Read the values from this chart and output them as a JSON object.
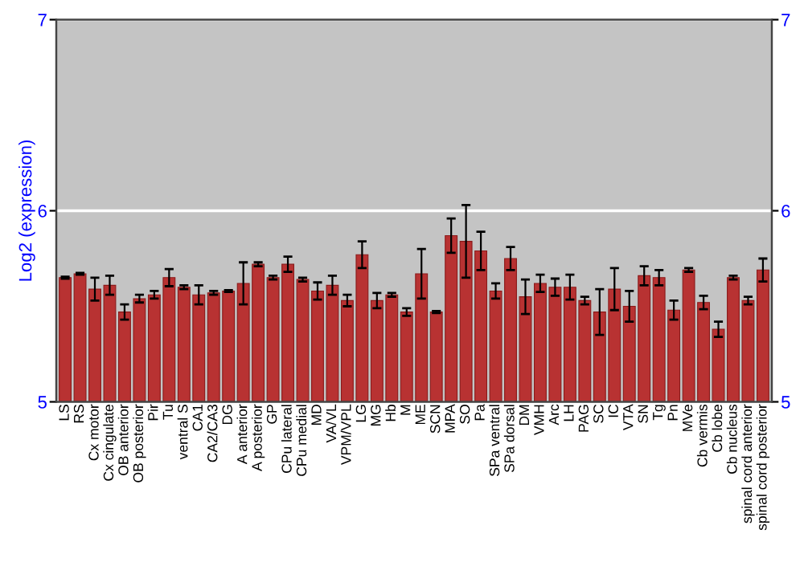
{
  "chart_data": {
    "type": "bar",
    "ylabel": "Log2 (expression)",
    "categories": [
      "LS",
      "RS",
      "Cx motor",
      "Cx cingulate",
      "OB anterior",
      "OB posterior",
      "Pir",
      "Tu",
      "ventral S",
      "CA1",
      "CA2/CA3",
      "DG",
      "A anterior",
      "A posterior",
      "GP",
      "CPu lateral",
      "CPu medial",
      "MD",
      "VA/VL",
      "VPM/VPL",
      "LG",
      "MG",
      "Hb",
      "M",
      "ME",
      "SCN",
      "MPA",
      "SO",
      "Pa",
      "SPa ventral",
      "SPa dorsal",
      "DM",
      "VMH",
      "Arc",
      "LH",
      "PAG",
      "SC",
      "IC",
      "VTA",
      "SN",
      "Tg",
      "Pn",
      "MVe",
      "Cb vermis",
      "Cb lobe",
      "Cb nucleus",
      "spinal cord anterior",
      "spinal cord posterior"
    ],
    "values": [
      5.65,
      5.67,
      5.59,
      5.61,
      5.47,
      5.54,
      5.56,
      5.65,
      5.6,
      5.56,
      5.57,
      5.58,
      5.62,
      5.72,
      5.65,
      5.72,
      5.64,
      5.58,
      5.61,
      5.53,
      5.77,
      5.53,
      5.56,
      5.47,
      5.67,
      5.47,
      5.87,
      5.84,
      5.79,
      5.58,
      5.75,
      5.55,
      5.62,
      5.6,
      5.6,
      5.53,
      5.47,
      5.59,
      5.5,
      5.66,
      5.65,
      5.48,
      5.69,
      5.52,
      5.38,
      5.65,
      5.53,
      5.69
    ],
    "errors": [
      0.005,
      0.005,
      0.06,
      0.05,
      0.04,
      0.02,
      0.02,
      0.045,
      0.01,
      0.05,
      0.01,
      0.005,
      0.11,
      0.01,
      0.01,
      0.04,
      0.01,
      0.045,
      0.05,
      0.03,
      0.07,
      0.04,
      0.01,
      0.02,
      0.13,
      0.005,
      0.09,
      0.19,
      0.1,
      0.04,
      0.06,
      0.09,
      0.045,
      0.045,
      0.065,
      0.02,
      0.12,
      0.11,
      0.08,
      0.05,
      0.04,
      0.05,
      0.01,
      0.035,
      0.04,
      0.01,
      0.02,
      0.06
    ],
    "color": "#b83232",
    "ylim": [
      5,
      7
    ],
    "yticks": [
      5,
      6,
      7
    ],
    "y2lim": [
      5,
      7
    ],
    "y2ticks": [
      5,
      6,
      7
    ],
    "grid": "y"
  }
}
